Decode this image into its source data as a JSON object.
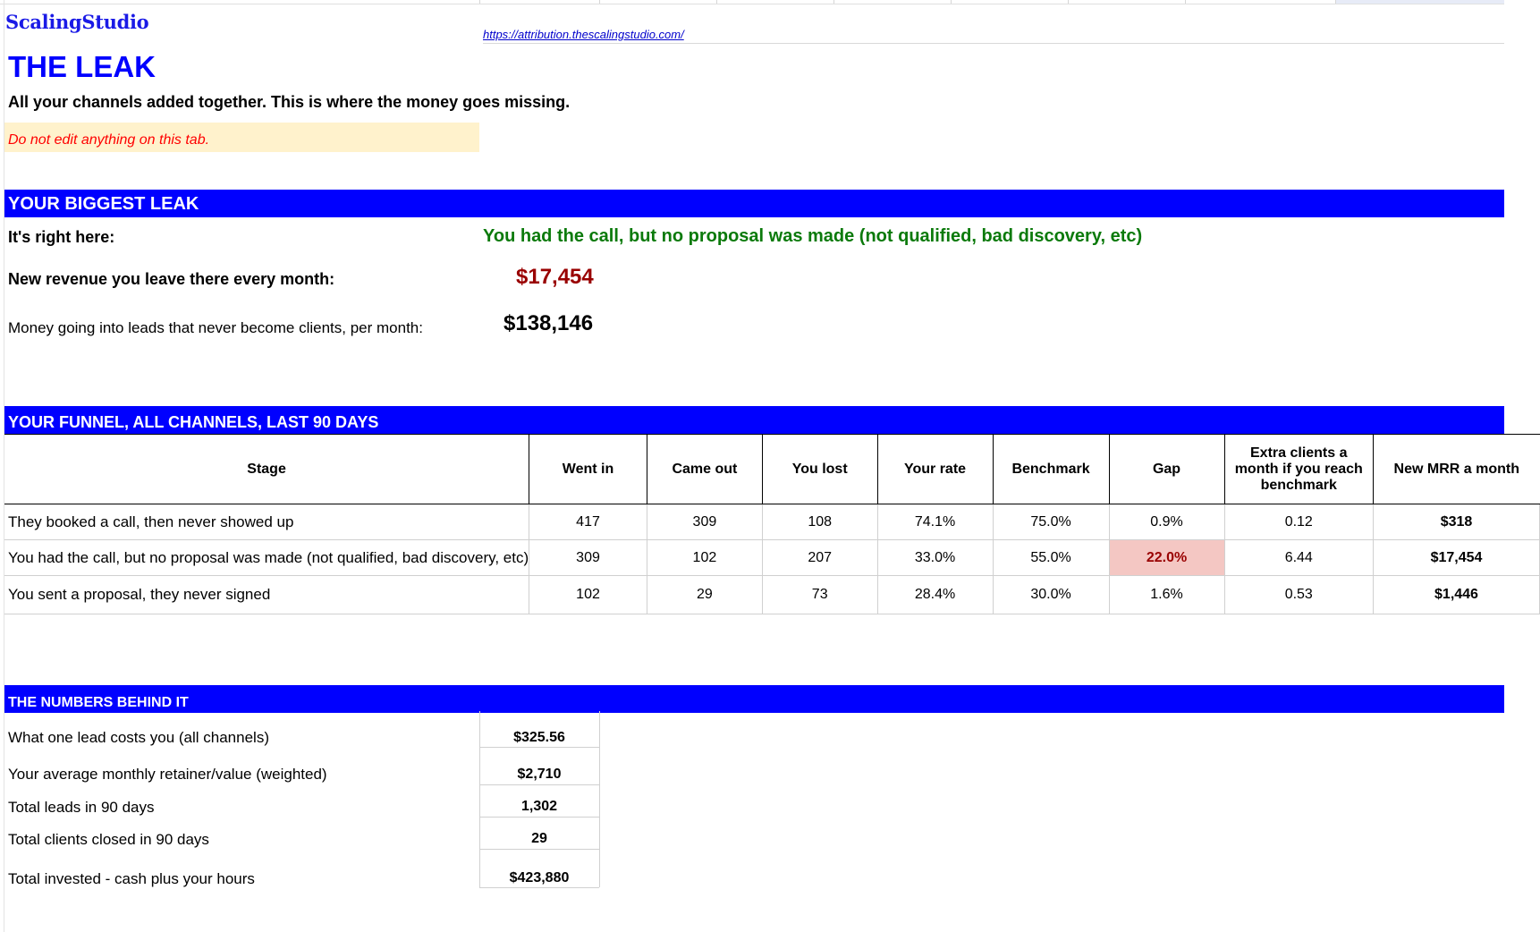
{
  "header": {
    "logo": "ScalingStudio",
    "url": "https://attribution.thescalingstudio.com/",
    "title": "THE LEAK",
    "subtitle": "All your channels added together. This is where the money goes missing.",
    "warning": "Do not edit anything on this tab."
  },
  "biggest_leak": {
    "section_title": "YOUR BIGGEST LEAK",
    "location_label": "It's right here:",
    "location_value": "You had the call, but no proposal was made (not qualified, bad discovery, etc)",
    "revenue_label": "New revenue you leave there every month:",
    "revenue_value": "$17,454",
    "money_label": "Money going into leads that never become clients, per month:",
    "money_value": "$138,146"
  },
  "funnel": {
    "section_title": "YOUR FUNNEL, ALL CHANNELS, LAST 90 DAYS",
    "columns": [
      "Stage",
      "Went in",
      "Came out",
      "You lost",
      "Your rate",
      "Benchmark",
      "Gap",
      "Extra clients a month if you reach benchmark",
      "New MRR a month"
    ],
    "rows": [
      {
        "stage": "They booked a call, then never showed up",
        "went_in": "417",
        "came_out": "309",
        "lost": "108",
        "rate": "74.1%",
        "benchmark": "75.0%",
        "gap": "0.9%",
        "extra_clients": "0.12",
        "mrr": "$318"
      },
      {
        "stage": "You had the call, but no proposal was made (not qualified, bad discovery, etc)",
        "went_in": "309",
        "came_out": "102",
        "lost": "207",
        "rate": "33.0%",
        "benchmark": "55.0%",
        "gap": "22.0%",
        "extra_clients": "6.44",
        "mrr": "$17,454"
      },
      {
        "stage": "You sent a proposal, they never signed",
        "went_in": "102",
        "came_out": "29",
        "lost": "73",
        "rate": "28.4%",
        "benchmark": "30.0%",
        "gap": "1.6%",
        "extra_clients": "0.53",
        "mrr": "$1,446"
      }
    ],
    "highlight_color": "#f4c7c3"
  },
  "numbers": {
    "section_title": "THE NUMBERS BEHIND IT",
    "items": [
      {
        "label": "What one lead costs you (all channels)",
        "value": "$325.56"
      },
      {
        "label": "Your average monthly retainer/value (weighted)",
        "value": "$2,710"
      },
      {
        "label": "Total leads in 90 days",
        "value": "1,302"
      },
      {
        "label": "Total clients closed in 90 days",
        "value": "29"
      },
      {
        "label": "Total invested - cash plus your hours",
        "value": "$423,880"
      }
    ]
  },
  "colors": {
    "accent": "#0000ff",
    "leak_green": "#0b7a0b",
    "loss_red": "#990000",
    "warning_bg": "#fff2cc"
  }
}
